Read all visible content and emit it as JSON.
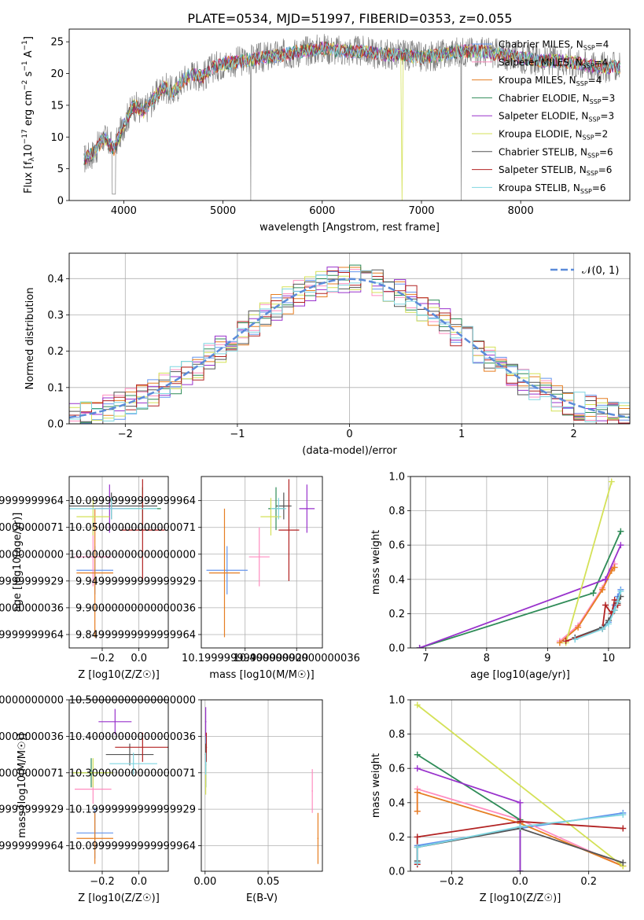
{
  "figure": {
    "title": "PLATE=0534, MJD=51997, FIBERID=0353, z=0.055"
  },
  "series": [
    {
      "name": "Chabrier MILES, N$_{SSP}$=4",
      "color": "#6495ED"
    },
    {
      "name": "Salpeter MILES, N$_{SSP}$=4",
      "color": "#FF8DC0"
    },
    {
      "name": "Kroupa MILES, N$_{SSP}$=4",
      "color": "#E67E22"
    },
    {
      "name": "Chabrier ELODIE, N$_{SSP}$=3",
      "color": "#2E8B57"
    },
    {
      "name": "Salpeter ELODIE, N$_{SSP}$=3",
      "color": "#9932CC"
    },
    {
      "name": "Kroupa ELODIE, N$_{SSP}$=2",
      "color": "#D4E157"
    },
    {
      "name": "Chabrier STELIB, N$_{SSP}$=6",
      "color": "#555555"
    },
    {
      "name": "Salpeter STELIB, N$_{SSP}$=6",
      "color": "#B22222"
    },
    {
      "name": "Kroupa STELIB, N$_{SSP}$=6",
      "color": "#7FD6E0"
    }
  ],
  "chart_data": [
    {
      "id": "spectrum",
      "type": "line",
      "xlabel": "wavelength [Angstrom, rest frame]",
      "ylabel": "Flux [f_λ10^-17 erg cm^-2 s^-1 A^-1]",
      "xlim": [
        3450,
        9100
      ],
      "ylim": [
        0,
        27
      ],
      "xticks": [
        4000,
        5000,
        6000,
        7000,
        8000
      ],
      "yticks": [
        0,
        5,
        10,
        15,
        20,
        25
      ],
      "legend_position": "right",
      "data_color": "#808080",
      "x": [
        3600,
        3700,
        3800,
        3900,
        4000,
        4100,
        4200,
        4300,
        4400,
        4500,
        4600,
        4700,
        4800,
        4900,
        5000,
        5200,
        5400,
        5600,
        5800,
        6000,
        6200,
        6400,
        6600,
        6800,
        7000,
        7200,
        7400,
        7600,
        7800,
        8000,
        8200,
        8400,
        8600,
        8800,
        9000
      ],
      "y": [
        6.5,
        7.5,
        10.0,
        8.0,
        12.0,
        15.0,
        14.0,
        16.0,
        18.0,
        17.0,
        19.0,
        20.0,
        19.5,
        21.0,
        21.5,
        22.0,
        22.5,
        23.0,
        23.5,
        24.0,
        23.5,
        23.5,
        23.0,
        23.0,
        22.5,
        23.0,
        23.5,
        23.5,
        23.0,
        22.5,
        22.0,
        22.0,
        21.5,
        21.0,
        21.0
      ]
    },
    {
      "id": "residuals",
      "type": "histogram",
      "xlabel": "(data-model)/error",
      "ylabel": "Normed distribution",
      "xlim": [
        -2.5,
        2.5
      ],
      "ylim": [
        0,
        0.47
      ],
      "xticks": [
        -2,
        -1,
        0,
        1,
        2
      ],
      "yticks": [
        0.0,
        0.1,
        0.2,
        0.3,
        0.4
      ],
      "grid": true,
      "legend_position": "top-right",
      "reference_curve": {
        "name": "N(0,1)",
        "mean": 0,
        "sigma": 1,
        "color": "#5B8BD9"
      },
      "bin_width": 0.1
    },
    {
      "id": "age_vs_Z",
      "type": "scatter",
      "xlabel": "Z [log10(Z/Z☉)]",
      "ylabel": "age  [log10(age/yr)]",
      "xlim": [
        -0.38,
        0.16
      ],
      "ylim": [
        9.825,
        10.145
      ],
      "xticks": [
        -0.2,
        0.0
      ],
      "yticks": [
        9.85,
        9.9,
        9.95,
        10.0,
        10.05,
        10.1
      ],
      "grid": true,
      "points": [
        {
          "x": -0.24,
          "y": 9.97,
          "xerr": 0.1,
          "yerr": 0.045
        },
        {
          "x": -0.25,
          "y": 9.995,
          "xerr": 0.1,
          "yerr": 0.055
        },
        {
          "x": -0.24,
          "y": 9.965,
          "xerr": 0.1,
          "yerr": 0.12
        },
        {
          "x": 0.02,
          "y": 10.085,
          "xerr": 0.1,
          "yerr": 0.04
        },
        {
          "x": -0.16,
          "y": 10.085,
          "xerr": 0.08,
          "yerr": 0.045
        },
        {
          "x": -0.25,
          "y": 10.07,
          "xerr": 0.09,
          "yerr": 0.035
        },
        {
          "x": -0.15,
          "y": 10.09,
          "xerr": 0.25,
          "yerr": 0.025
        },
        {
          "x": 0.02,
          "y": 10.045,
          "xerr": 0.12,
          "yerr": 0.095
        },
        {
          "x": -0.15,
          "y": 10.085,
          "xerr": 0.25,
          "yerr": 0.02
        }
      ]
    },
    {
      "id": "age_vs_mass",
      "type": "scatter",
      "xlabel": "mass [log10(M/M☉)]",
      "ylabel": "",
      "xlim": [
        10.03,
        10.5
      ],
      "ylim": [
        9.825,
        10.145
      ],
      "xticks": [
        10.2,
        10.4
      ],
      "yticks": [
        9.85,
        9.9,
        9.95,
        10.0,
        10.05,
        10.1
      ],
      "grid": true,
      "points": [
        {
          "x": 10.13,
          "y": 9.97,
          "xerr": 0.08,
          "yerr": 0.045
        },
        {
          "x": 10.255,
          "y": 9.995,
          "xerr": 0.04,
          "yerr": 0.055
        },
        {
          "x": 10.12,
          "y": 9.965,
          "xerr": 0.06,
          "yerr": 0.12
        },
        {
          "x": 10.32,
          "y": 10.085,
          "xerr": 0.03,
          "yerr": 0.04
        },
        {
          "x": 10.44,
          "y": 10.085,
          "xerr": 0.03,
          "yerr": 0.045
        },
        {
          "x": 10.3,
          "y": 10.07,
          "xerr": 0.04,
          "yerr": 0.035
        },
        {
          "x": 10.35,
          "y": 10.09,
          "xerr": 0.03,
          "yerr": 0.025
        },
        {
          "x": 10.37,
          "y": 10.045,
          "xerr": 0.04,
          "yerr": 0.095
        },
        {
          "x": 10.33,
          "y": 10.085,
          "xerr": 0.03,
          "yerr": 0.02
        }
      ]
    },
    {
      "id": "weight_vs_age",
      "type": "line",
      "xlabel": "age  [log10(age/yr)]",
      "ylabel": "mass weight",
      "xlim": [
        6.75,
        10.35
      ],
      "ylim": [
        0,
        1.0
      ],
      "xticks": [
        7,
        8,
        9,
        10
      ],
      "yticks": [
        0.0,
        0.2,
        0.4,
        0.6,
        0.8,
        1.0
      ],
      "grid": true,
      "series_points": [
        {
          "x": [
            9.45,
            9.9,
            10.0,
            10.1,
            10.15,
            10.2
          ],
          "y": [
            0.05,
            0.12,
            0.15,
            0.25,
            0.3,
            0.34
          ]
        },
        {
          "x": [
            9.2,
            9.5,
            9.9,
            10.05,
            10.1
          ],
          "y": [
            0.04,
            0.13,
            0.35,
            0.46,
            0.49
          ]
        },
        {
          "x": [
            9.2,
            9.5,
            9.9,
            10.05,
            10.1
          ],
          "y": [
            0.03,
            0.12,
            0.34,
            0.45,
            0.47
          ]
        },
        {
          "x": [
            6.9,
            9.75,
            10.2
          ],
          "y": [
            0.0,
            0.32,
            0.68
          ]
        },
        {
          "x": [
            6.9,
            9.95,
            10.2
          ],
          "y": [
            0.0,
            0.4,
            0.6
          ]
        },
        {
          "x": [
            9.3,
            10.05
          ],
          "y": [
            0.03,
            0.97
          ]
        },
        {
          "x": [
            9.45,
            9.9,
            10.0,
            10.1,
            10.15,
            10.2
          ],
          "y": [
            0.06,
            0.12,
            0.16,
            0.22,
            0.26,
            0.3
          ]
        },
        {
          "x": [
            9.3,
            9.9,
            9.95,
            10.05,
            10.1,
            10.15
          ],
          "y": [
            0.04,
            0.11,
            0.25,
            0.2,
            0.28,
            0.25
          ]
        },
        {
          "x": [
            9.45,
            9.9,
            10.0,
            10.1,
            10.15,
            10.2
          ],
          "y": [
            0.05,
            0.11,
            0.14,
            0.22,
            0.27,
            0.33
          ]
        }
      ]
    },
    {
      "id": "mass_vs_Z",
      "type": "scatter",
      "xlabel": "Z [log10(Z/Z☉)]",
      "ylabel": "mass [log10(M/M☉)]",
      "xlim": [
        -0.38,
        0.16
      ],
      "ylim": [
        10.03,
        10.5
      ],
      "xticks": [
        -0.2,
        0.0
      ],
      "yticks": [
        10.1,
        10.2,
        10.3,
        10.4,
        10.5
      ],
      "grid": true,
      "points": [
        {
          "x": -0.24,
          "y": 10.135,
          "xerr": 0.1,
          "yerr": 0.07
        },
        {
          "x": -0.25,
          "y": 10.255,
          "xerr": 0.1,
          "yerr": 0.04
        },
        {
          "x": -0.24,
          "y": 10.12,
          "xerr": 0.1,
          "yerr": 0.07
        },
        {
          "x": -0.26,
          "y": 10.3,
          "xerr": 0.1,
          "yerr": 0.04
        },
        {
          "x": -0.13,
          "y": 10.44,
          "xerr": 0.09,
          "yerr": 0.035
        },
        {
          "x": -0.25,
          "y": 10.3,
          "xerr": 0.11,
          "yerr": 0.04
        },
        {
          "x": -0.05,
          "y": 10.35,
          "xerr": 0.13,
          "yerr": 0.03
        },
        {
          "x": 0.02,
          "y": 10.37,
          "xerr": 0.15,
          "yerr": 0.04
        },
        {
          "x": -0.03,
          "y": 10.325,
          "xerr": 0.13,
          "yerr": 0.03
        }
      ]
    },
    {
      "id": "mass_vs_EBV",
      "type": "scatter",
      "xlabel": "E(B-V)",
      "ylabel": "",
      "xlim": [
        -0.003,
        0.093
      ],
      "ylim": [
        10.03,
        10.5
      ],
      "xticks": [
        0.0,
        0.05
      ],
      "yticks": [
        10.1,
        10.2,
        10.3,
        10.4,
        10.5
      ],
      "grid": true,
      "points": [
        {
          "x": 0.0005,
          "y": 10.33,
          "xerr": 0.0005,
          "yerr": 0.07
        },
        {
          "x": 0.085,
          "y": 10.25,
          "xerr": 0.0005,
          "yerr": 0.06
        },
        {
          "x": 0.0895,
          "y": 10.12,
          "xerr": 0.0005,
          "yerr": 0.07
        },
        {
          "x": 0.0005,
          "y": 10.3,
          "xerr": 0.0005,
          "yerr": 0.04
        },
        {
          "x": 0.0005,
          "y": 10.44,
          "xerr": 0.0005,
          "yerr": 0.04
        },
        {
          "x": 0.0005,
          "y": 10.3,
          "xerr": 0.0005,
          "yerr": 0.06
        },
        {
          "x": 0.0005,
          "y": 10.35,
          "xerr": 0.0005,
          "yerr": 0.03
        },
        {
          "x": 0.001,
          "y": 10.37,
          "xerr": 0.0005,
          "yerr": 0.04
        },
        {
          "x": 0.0005,
          "y": 10.325,
          "xerr": 0.0005,
          "yerr": 0.03
        }
      ]
    },
    {
      "id": "weight_vs_Z",
      "type": "line",
      "xlabel": "Z [log10(Z/Z☉)]",
      "ylabel": "mass weight",
      "xlim": [
        -0.32,
        0.32
      ],
      "ylim": [
        0,
        1.0
      ],
      "xticks": [
        -0.2,
        0.0,
        0.2
      ],
      "yticks": [
        0.0,
        0.2,
        0.4,
        0.6,
        0.8,
        1.0
      ],
      "grid": true,
      "series_points": [
        {
          "x": [
            -0.3,
            -0.3,
            0.0,
            0.3
          ],
          "y": [
            0.05,
            0.15,
            0.25,
            0.34
          ]
        },
        {
          "x": [
            -0.3,
            -0.3,
            0.0,
            0.3
          ],
          "y": [
            0.35,
            0.48,
            0.3,
            0.03
          ]
        },
        {
          "x": [
            -0.3,
            -0.3,
            0.0,
            0.3
          ],
          "y": [
            0.35,
            0.46,
            0.28,
            0.03
          ]
        },
        {
          "x": [
            -0.3,
            0.0,
            0.0
          ],
          "y": [
            0.68,
            0.3,
            0.0
          ]
        },
        {
          "x": [
            -0.3,
            0.0,
            0.0
          ],
          "y": [
            0.6,
            0.4,
            0.0
          ]
        },
        {
          "x": [
            -0.3,
            0.3
          ],
          "y": [
            0.97,
            0.03
          ]
        },
        {
          "x": [
            -0.3,
            -0.3,
            0.0,
            0.3
          ],
          "y": [
            0.06,
            0.14,
            0.25,
            0.05
          ]
        },
        {
          "x": [
            -0.3,
            -0.3,
            0.0,
            0.3
          ],
          "y": [
            0.04,
            0.2,
            0.29,
            0.25
          ]
        },
        {
          "x": [
            -0.3,
            -0.3,
            0.0,
            0.3
          ],
          "y": [
            0.05,
            0.14,
            0.26,
            0.33
          ]
        }
      ]
    }
  ]
}
